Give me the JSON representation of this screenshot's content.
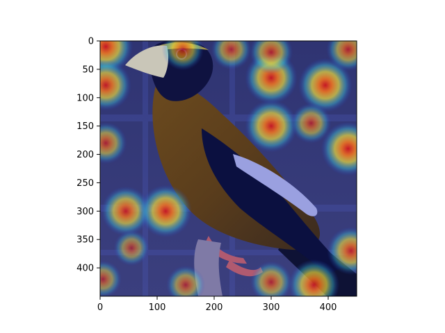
{
  "figure": {
    "image_subject": "bird photograph with heatmap overlay",
    "image_size": [
      450,
      450
    ]
  },
  "axes": {
    "x_ticks": [
      "0",
      "100",
      "200",
      "300",
      "400"
    ],
    "y_ticks": [
      "0",
      "50",
      "100",
      "150",
      "200",
      "250",
      "300",
      "350",
      "400"
    ],
    "x_tick_values": [
      0,
      100,
      200,
      300,
      400
    ],
    "y_tick_values": [
      0,
      50,
      100,
      150,
      200,
      250,
      300,
      350,
      400
    ],
    "xlim": [
      0,
      450
    ],
    "ylim": [
      450,
      0
    ]
  },
  "chart_data": {
    "type": "heatmap",
    "xlabel": "",
    "ylabel": "",
    "hotspots": [
      {
        "x": 10,
        "y": 10,
        "intensity": 0.95
      },
      {
        "x": 10,
        "y": 78,
        "intensity": 0.85
      },
      {
        "x": 10,
        "y": 180,
        "intensity": 0.55
      },
      {
        "x": 300,
        "y": 65,
        "intensity": 0.9
      },
      {
        "x": 300,
        "y": 150,
        "intensity": 0.9
      },
      {
        "x": 395,
        "y": 78,
        "intensity": 0.95
      },
      {
        "x": 435,
        "y": 190,
        "intensity": 0.95
      },
      {
        "x": 435,
        "y": 15,
        "intensity": 0.6
      },
      {
        "x": 370,
        "y": 145,
        "intensity": 0.5
      },
      {
        "x": 45,
        "y": 300,
        "intensity": 0.8
      },
      {
        "x": 115,
        "y": 300,
        "intensity": 0.9
      },
      {
        "x": 145,
        "y": 15,
        "intensity": 0.55
      },
      {
        "x": 230,
        "y": 15,
        "intensity": 0.5
      },
      {
        "x": 300,
        "y": 20,
        "intensity": 0.6
      },
      {
        "x": 375,
        "y": 430,
        "intensity": 0.85
      },
      {
        "x": 440,
        "y": 370,
        "intensity": 0.75
      },
      {
        "x": 300,
        "y": 425,
        "intensity": 0.55
      },
      {
        "x": 150,
        "y": 430,
        "intensity": 0.45
      },
      {
        "x": 5,
        "y": 420,
        "intensity": 0.4
      },
      {
        "x": 55,
        "y": 365,
        "intensity": 0.35
      }
    ]
  }
}
